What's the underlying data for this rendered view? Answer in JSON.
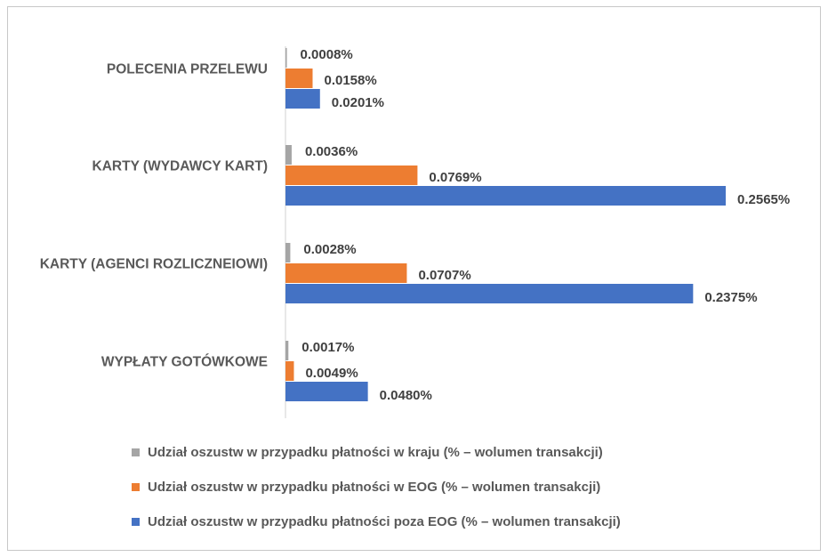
{
  "chart_data": {
    "type": "bar",
    "orientation": "horizontal",
    "categories": [
      "POLECENIA PRZELEWU",
      "KARTY (WYDAWCY KART)",
      "KARTY (AGENCI ROZLICZNEIOWI)",
      "WYPŁATY GOTÓWKOWE"
    ],
    "series": [
      {
        "name": "Udział oszustw w przypadku płatności w kraju (% – wolumen transakcji)",
        "color": "#a5a5a5",
        "values": [
          0.0008,
          0.0036,
          0.0028,
          0.0017
        ],
        "labels": [
          "0.0008%",
          "0.0036%",
          "0.0028%",
          "0.0017%"
        ]
      },
      {
        "name": "Udział oszustw w przypadku płatności w EOG (% – wolumen transakcji)",
        "color": "#ed7d31",
        "values": [
          0.0158,
          0.0769,
          0.0707,
          0.0049
        ],
        "labels": [
          "0.0158%",
          "0.0769%",
          "0.0707%",
          "0.0049%"
        ]
      },
      {
        "name": "Udział oszustw w przypadku płatności poza EOG (% – wolumen transakcji)",
        "color": "#4472c4",
        "values": [
          0.0201,
          0.2565,
          0.2375,
          0.048
        ],
        "labels": [
          "0.0201%",
          "0.2565%",
          "0.2375%",
          "0.0480%"
        ]
      }
    ],
    "xlim": [
      0,
      0.26
    ],
    "grid": false,
    "legend_position": "bottom"
  }
}
